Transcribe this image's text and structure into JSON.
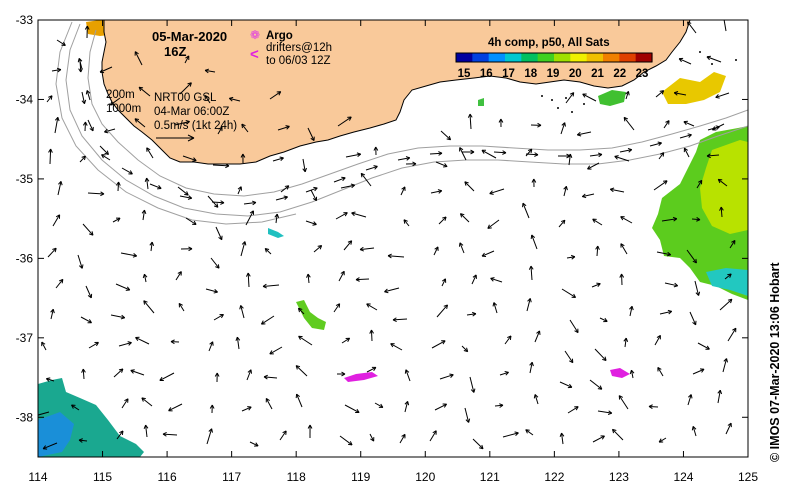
{
  "map": {
    "date_title": "05-Mar-2020",
    "time_title": "16Z",
    "legend": {
      "argo_label": "Argo",
      "drifters_line1": "drifters@12h",
      "drifters_line2": "to 06/03 12Z",
      "argo_symbol": "❁",
      "drifter_symbol": "<",
      "argo_color": "#e040e0",
      "drifter_color": "#e020e0"
    },
    "isobaths": [
      "200m",
      "1000m"
    ],
    "model_info": [
      "NRT00 GSL",
      "04-Mar 06:00Z",
      "0.5m/s (1kt 24h)"
    ],
    "colorbar": {
      "title": "4h comp, p50, All Sats",
      "ticks": [
        "15",
        "16",
        "17",
        "18",
        "19",
        "20",
        "21",
        "22",
        "23"
      ],
      "colors": [
        "#0000a0",
        "#0040e0",
        "#0090ff",
        "#00c8d0",
        "#00c060",
        "#40d020",
        "#a0e000",
        "#f0f000",
        "#f0c000",
        "#f08000",
        "#e04000",
        "#a00000"
      ]
    },
    "credit": "© IMOS 07-Mar-2020 13:06 Hobart",
    "x_axis": {
      "min": 114,
      "max": 125,
      "ticks": [
        "114",
        "115",
        "116",
        "117",
        "118",
        "119",
        "120",
        "121",
        "122",
        "123",
        "124",
        "125"
      ]
    },
    "y_axis": {
      "min": -38.5,
      "max": -33,
      "ticks": [
        "-33",
        "-34",
        "-35",
        "-36",
        "-37",
        "-38"
      ]
    },
    "colors": {
      "land": "#f9c99a",
      "coast": "#000000",
      "isobath": "#a0a0a0"
    }
  }
}
